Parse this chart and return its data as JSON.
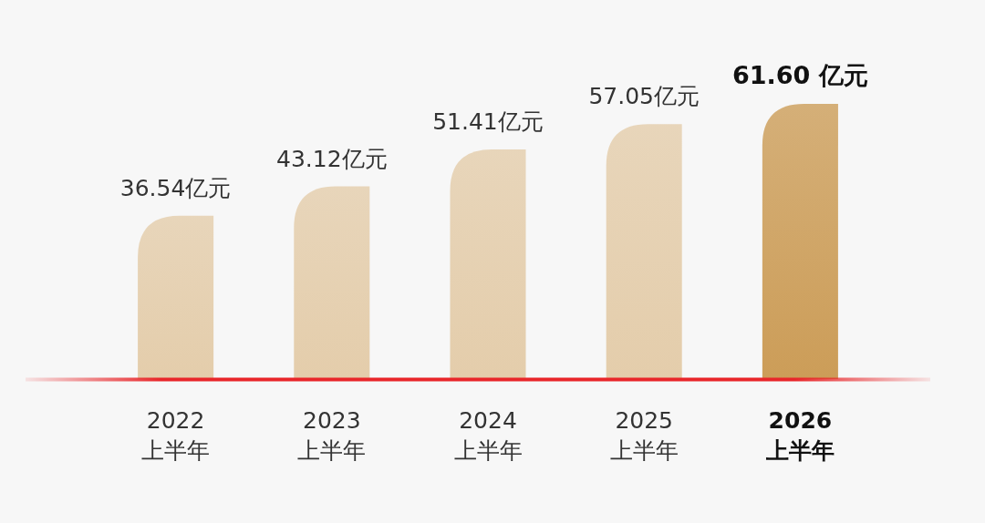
{
  "chart_data": {
    "type": "bar",
    "categories": [
      "2022\n上半年",
      "2023\n上半年",
      "2024\n上半年",
      "2025\n上半年",
      "2026\n上半年"
    ],
    "values": [
      36.54,
      43.12,
      51.41,
      57.05,
      61.6
    ],
    "colors": [
      "#e4cdab",
      "#e4cdab",
      "#e4cdab",
      "#e4cdab",
      "#cc9d58"
    ],
    "value_labels": [
      "36.54亿元",
      "43.12亿元",
      "51.41亿元",
      "57.05亿元",
      "61.60 亿元"
    ]
  }
}
